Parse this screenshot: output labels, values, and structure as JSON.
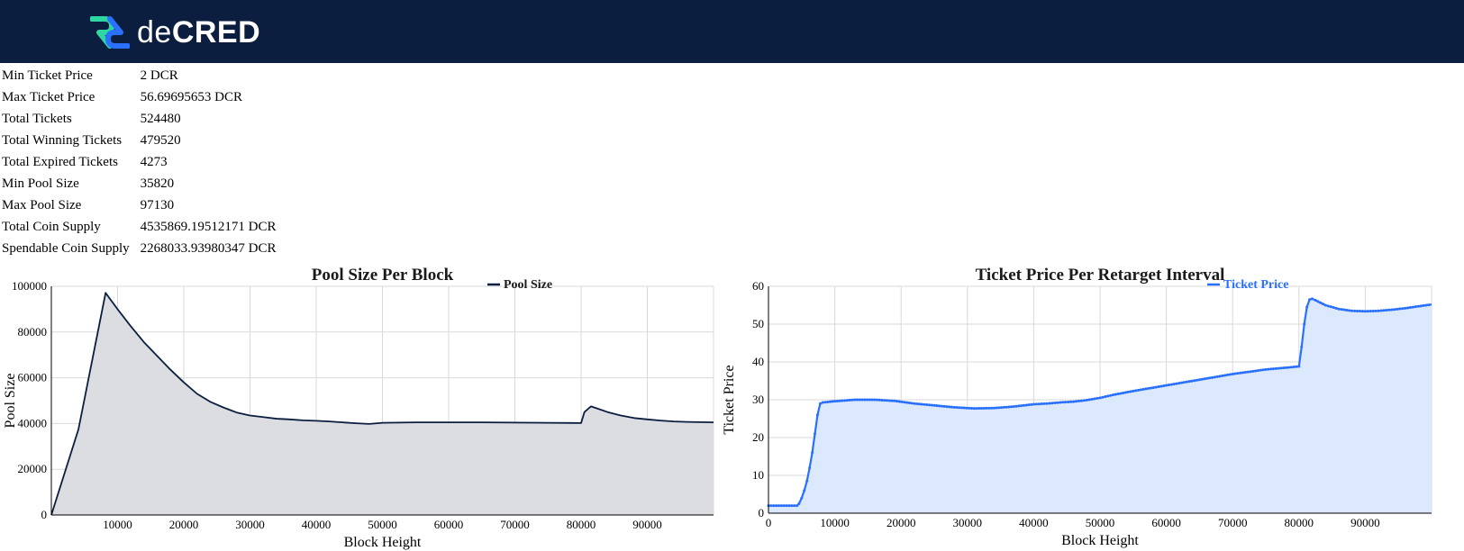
{
  "header": {
    "logo_text_light": "de",
    "logo_text_bold": "CRED"
  },
  "stats": [
    {
      "label": "Min Ticket Price",
      "value": "2 DCR"
    },
    {
      "label": "Max Ticket Price",
      "value": "56.69695653 DCR"
    },
    {
      "label": "Total Tickets",
      "value": "524480"
    },
    {
      "label": "Total Winning Tickets",
      "value": "479520"
    },
    {
      "label": "Total Expired Tickets",
      "value": "4273"
    },
    {
      "label": "Min Pool Size",
      "value": "35820"
    },
    {
      "label": "Max Pool Size",
      "value": "97130"
    },
    {
      "label": "Total Coin Supply",
      "value": "4535869.19512171 DCR"
    },
    {
      "label": "Spendable Coin Supply",
      "value": "2268033.93980347 DCR"
    }
  ],
  "colors": {
    "header_bg": "#0b1e3f",
    "pool_line": "#0b1e3f",
    "pool_fill": "#dcdde1",
    "price_line": "#2970ff",
    "price_fill": "#dce8fc",
    "grid": "#d9d9d9"
  },
  "chart_data": [
    {
      "type": "area",
      "title": "Pool Size Per Block",
      "xlabel": "Block Height",
      "ylabel": "Pool Size",
      "xlim": [
        0,
        100000
      ],
      "ylim": [
        0,
        100000
      ],
      "x_ticks": [
        10000,
        20000,
        30000,
        40000,
        50000,
        60000,
        70000,
        80000,
        90000
      ],
      "y_ticks": [
        0,
        20000,
        40000,
        60000,
        80000,
        100000
      ],
      "grid": true,
      "legend_position": "top-right",
      "series": [
        {
          "name": "Pool Size",
          "x": [
            0,
            4096,
            8192,
            10000,
            12000,
            14000,
            16000,
            18000,
            20000,
            22000,
            24000,
            26000,
            28000,
            30000,
            32000,
            34000,
            36000,
            38000,
            40000,
            42000,
            44000,
            46000,
            48000,
            50000,
            55000,
            60000,
            65000,
            70000,
            75000,
            80000,
            80500,
            81500,
            82500,
            84000,
            86000,
            88000,
            90000,
            92000,
            94000,
            96000,
            98000,
            100000
          ],
          "y": [
            0,
            37500,
            97130,
            90000,
            82500,
            75500,
            69500,
            63500,
            58000,
            53000,
            49500,
            47000,
            44800,
            43500,
            42800,
            42100,
            41800,
            41400,
            41200,
            40900,
            40500,
            40100,
            39800,
            40300,
            40500,
            40500,
            40500,
            40400,
            40300,
            40200,
            45000,
            47500,
            46500,
            45000,
            43500,
            42400,
            41800,
            41300,
            40900,
            40700,
            40600,
            40500
          ]
        }
      ]
    },
    {
      "type": "area",
      "title": "Ticket Price Per Retarget Interval",
      "xlabel": "Block Height",
      "ylabel": "Ticket Price",
      "xlim": [
        0,
        100000
      ],
      "ylim": [
        0,
        60
      ],
      "x_ticks": [
        0,
        10000,
        20000,
        30000,
        40000,
        50000,
        60000,
        70000,
        80000,
        90000
      ],
      "y_ticks": [
        0,
        10,
        20,
        30,
        40,
        50,
        60
      ],
      "grid": true,
      "legend_position": "top-right",
      "series": [
        {
          "name": "Ticket Price",
          "x": [
            0,
            4300,
            4600,
            5000,
            5400,
            5800,
            6200,
            6600,
            7000,
            7400,
            7800,
            8200,
            10000,
            13000,
            16000,
            19000,
            22000,
            25000,
            28000,
            31000,
            34000,
            37000,
            40000,
            42000,
            44000,
            46000,
            48000,
            50000,
            52000,
            55000,
            60000,
            65000,
            70000,
            75000,
            80000,
            80400,
            80800,
            81200,
            81600,
            82000,
            82500,
            84000,
            86000,
            88000,
            90000,
            92000,
            94000,
            96000,
            98000,
            100000
          ],
          "y": [
            2,
            2,
            2.5,
            4,
            6,
            8.5,
            12,
            16,
            21,
            26,
            29,
            29.3,
            29.6,
            30,
            30,
            29.7,
            29,
            28.5,
            28,
            27.7,
            27.8,
            28.2,
            28.8,
            29,
            29.3,
            29.5,
            29.9,
            30.5,
            31.3,
            32.3,
            33.8,
            35.3,
            36.8,
            38,
            38.8,
            44,
            50,
            54.5,
            56.5,
            56.69695653,
            56.3,
            55,
            54,
            53.5,
            53.4,
            53.5,
            53.8,
            54.2,
            54.7,
            55.2
          ]
        }
      ]
    }
  ]
}
